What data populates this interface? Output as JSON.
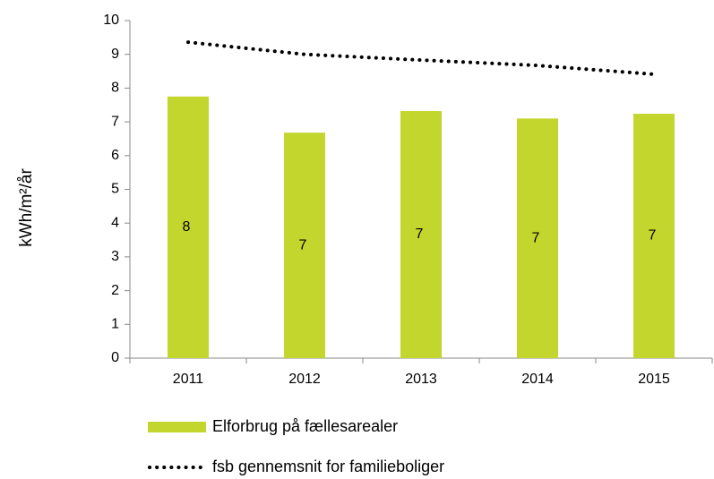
{
  "chart_data": {
    "type": "bar",
    "y_label": "kWh/m²/år",
    "categories": [
      "2011",
      "2012",
      "2013",
      "2014",
      "2015"
    ],
    "series": [
      {
        "name": "Elforbrug på fællesarealer",
        "type": "bar",
        "color": "#c3d62e",
        "values": [
          7.75,
          6.68,
          7.32,
          7.1,
          7.24
        ],
        "value_labels": [
          "8",
          "7",
          "7",
          "7",
          "7"
        ]
      },
      {
        "name": "fsb gennemsnit for familieboliger",
        "type": "line",
        "color": "#000000",
        "dotted": true,
        "values": [
          9.36,
          9.0,
          8.83,
          8.67,
          8.41
        ]
      }
    ],
    "ylim": [
      0,
      10
    ],
    "yticks": [
      0,
      1,
      2,
      3,
      4,
      5,
      6,
      7,
      8,
      9,
      10
    ],
    "grid": false,
    "legend": "bottom"
  }
}
